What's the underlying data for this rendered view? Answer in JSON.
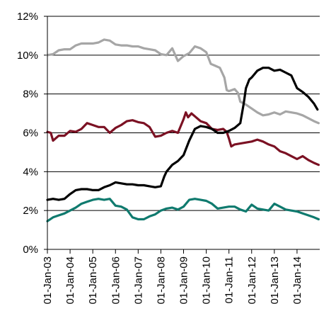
{
  "chart_data": {
    "type": "line",
    "title": "",
    "xlabel": "",
    "ylabel": "",
    "ylim": [
      0,
      12
    ],
    "y_tick_labels": [
      "0%",
      "2%",
      "4%",
      "6%",
      "8%",
      "10%",
      "12%"
    ],
    "y_ticks": [
      0,
      2,
      4,
      6,
      8,
      10,
      12
    ],
    "x_tick_labels": [
      "01-Jan-03",
      "01-Jan-04",
      "01-Jan-05",
      "01-Jan-06",
      "01-Jan-07",
      "01-Jan-08",
      "01-Jan-09",
      "01-Jan-10",
      "01-Jan-11",
      "01-Jan-12",
      "01-Jan-13",
      "01-Jan-14"
    ],
    "x_ticks": [
      2003,
      2004,
      2005,
      2006,
      2007,
      2008,
      2009,
      2010,
      2011,
      2012,
      2013,
      2014
    ],
    "xlim": [
      2003,
      2015
    ],
    "grid": true,
    "legend": "none",
    "series": [
      {
        "color": "#a6a6a6",
        "points": [
          [
            2003.0,
            10.0
          ],
          [
            2003.25,
            10.05
          ],
          [
            2003.5,
            10.25
          ],
          [
            2003.75,
            10.3
          ],
          [
            2004.0,
            10.3
          ],
          [
            2004.25,
            10.5
          ],
          [
            2004.5,
            10.6
          ],
          [
            2004.75,
            10.6
          ],
          [
            2005.0,
            10.6
          ],
          [
            2005.25,
            10.65
          ],
          [
            2005.5,
            10.8
          ],
          [
            2005.75,
            10.75
          ],
          [
            2006.0,
            10.55
          ],
          [
            2006.25,
            10.5
          ],
          [
            2006.5,
            10.5
          ],
          [
            2006.75,
            10.45
          ],
          [
            2007.0,
            10.45
          ],
          [
            2007.25,
            10.35
          ],
          [
            2007.5,
            10.3
          ],
          [
            2007.75,
            10.25
          ],
          [
            2008.0,
            10.05
          ],
          [
            2008.25,
            10.0
          ],
          [
            2008.5,
            10.35
          ],
          [
            2008.75,
            9.7
          ],
          [
            2009.0,
            9.95
          ],
          [
            2009.25,
            10.1
          ],
          [
            2009.5,
            10.45
          ],
          [
            2009.75,
            10.35
          ],
          [
            2010.0,
            10.15
          ],
          [
            2010.2,
            9.55
          ],
          [
            2010.4,
            9.45
          ],
          [
            2010.6,
            9.35
          ],
          [
            2010.8,
            8.85
          ],
          [
            2010.9,
            8.2
          ],
          [
            2011.0,
            8.15
          ],
          [
            2011.25,
            8.25
          ],
          [
            2011.4,
            8.05
          ],
          [
            2011.5,
            7.6
          ],
          [
            2011.75,
            7.45
          ],
          [
            2012.0,
            7.25
          ],
          [
            2012.25,
            7.05
          ],
          [
            2012.5,
            6.9
          ],
          [
            2012.75,
            6.95
          ],
          [
            2013.0,
            7.05
          ],
          [
            2013.25,
            6.95
          ],
          [
            2013.5,
            7.1
          ],
          [
            2013.75,
            7.05
          ],
          [
            2014.0,
            7.0
          ],
          [
            2014.25,
            6.9
          ],
          [
            2014.5,
            6.75
          ],
          [
            2014.75,
            6.6
          ],
          [
            2014.95,
            6.5
          ]
        ]
      },
      {
        "color": "#7b1123",
        "points": [
          [
            2003.0,
            6.05
          ],
          [
            2003.15,
            6.0
          ],
          [
            2003.25,
            5.6
          ],
          [
            2003.5,
            5.85
          ],
          [
            2003.75,
            5.85
          ],
          [
            2004.0,
            6.1
          ],
          [
            2004.25,
            6.05
          ],
          [
            2004.5,
            6.2
          ],
          [
            2004.75,
            6.5
          ],
          [
            2005.0,
            6.4
          ],
          [
            2005.25,
            6.3
          ],
          [
            2005.5,
            6.3
          ],
          [
            2005.75,
            6.0
          ],
          [
            2006.0,
            6.25
          ],
          [
            2006.25,
            6.4
          ],
          [
            2006.5,
            6.6
          ],
          [
            2006.75,
            6.65
          ],
          [
            2007.0,
            6.55
          ],
          [
            2007.25,
            6.5
          ],
          [
            2007.5,
            6.3
          ],
          [
            2007.75,
            5.8
          ],
          [
            2008.0,
            5.85
          ],
          [
            2008.25,
            6.0
          ],
          [
            2008.5,
            6.1
          ],
          [
            2008.75,
            6.0
          ],
          [
            2009.0,
            6.7
          ],
          [
            2009.1,
            7.05
          ],
          [
            2009.2,
            6.8
          ],
          [
            2009.35,
            7.0
          ],
          [
            2009.5,
            6.85
          ],
          [
            2009.75,
            6.6
          ],
          [
            2010.0,
            6.5
          ],
          [
            2010.25,
            6.2
          ],
          [
            2010.5,
            6.15
          ],
          [
            2010.75,
            6.2
          ],
          [
            2010.9,
            6.05
          ],
          [
            2011.0,
            5.7
          ],
          [
            2011.1,
            5.3
          ],
          [
            2011.25,
            5.4
          ],
          [
            2011.5,
            5.45
          ],
          [
            2011.75,
            5.5
          ],
          [
            2012.0,
            5.55
          ],
          [
            2012.25,
            5.65
          ],
          [
            2012.5,
            5.55
          ],
          [
            2012.75,
            5.4
          ],
          [
            2013.0,
            5.3
          ],
          [
            2013.25,
            5.05
          ],
          [
            2013.5,
            4.95
          ],
          [
            2013.75,
            4.8
          ],
          [
            2014.0,
            4.65
          ],
          [
            2014.25,
            4.8
          ],
          [
            2014.5,
            4.6
          ],
          [
            2014.75,
            4.45
          ],
          [
            2014.95,
            4.35
          ]
        ]
      },
      {
        "color": "#000000",
        "points": [
          [
            2003.0,
            2.55
          ],
          [
            2003.25,
            2.6
          ],
          [
            2003.5,
            2.55
          ],
          [
            2003.75,
            2.6
          ],
          [
            2004.0,
            2.85
          ],
          [
            2004.25,
            3.05
          ],
          [
            2004.5,
            3.1
          ],
          [
            2004.75,
            3.1
          ],
          [
            2005.0,
            3.05
          ],
          [
            2005.25,
            3.05
          ],
          [
            2005.5,
            3.2
          ],
          [
            2005.75,
            3.3
          ],
          [
            2006.0,
            3.45
          ],
          [
            2006.25,
            3.4
          ],
          [
            2006.5,
            3.35
          ],
          [
            2006.75,
            3.35
          ],
          [
            2007.0,
            3.3
          ],
          [
            2007.25,
            3.3
          ],
          [
            2007.5,
            3.25
          ],
          [
            2007.75,
            3.2
          ],
          [
            2008.0,
            3.25
          ],
          [
            2008.15,
            3.75
          ],
          [
            2008.25,
            4.0
          ],
          [
            2008.5,
            4.35
          ],
          [
            2008.75,
            4.55
          ],
          [
            2009.0,
            4.85
          ],
          [
            2009.25,
            5.6
          ],
          [
            2009.5,
            6.2
          ],
          [
            2009.75,
            6.35
          ],
          [
            2010.0,
            6.3
          ],
          [
            2010.25,
            6.2
          ],
          [
            2010.5,
            6.0
          ],
          [
            2010.75,
            6.0
          ],
          [
            2011.0,
            6.1
          ],
          [
            2011.25,
            6.25
          ],
          [
            2011.5,
            6.5
          ],
          [
            2011.65,
            7.5
          ],
          [
            2011.75,
            8.3
          ],
          [
            2011.9,
            8.75
          ],
          [
            2012.0,
            8.85
          ],
          [
            2012.25,
            9.2
          ],
          [
            2012.5,
            9.35
          ],
          [
            2012.75,
            9.35
          ],
          [
            2013.0,
            9.2
          ],
          [
            2013.25,
            9.25
          ],
          [
            2013.5,
            9.1
          ],
          [
            2013.75,
            8.95
          ],
          [
            2014.0,
            8.3
          ],
          [
            2014.25,
            8.1
          ],
          [
            2014.5,
            7.85
          ],
          [
            2014.75,
            7.5
          ],
          [
            2014.9,
            7.2
          ]
        ]
      },
      {
        "color": "#0f7a6e",
        "points": [
          [
            2003.0,
            1.45
          ],
          [
            2003.25,
            1.65
          ],
          [
            2003.5,
            1.75
          ],
          [
            2003.75,
            1.85
          ],
          [
            2004.0,
            2.0
          ],
          [
            2004.25,
            2.15
          ],
          [
            2004.5,
            2.35
          ],
          [
            2004.75,
            2.45
          ],
          [
            2005.0,
            2.55
          ],
          [
            2005.25,
            2.6
          ],
          [
            2005.5,
            2.55
          ],
          [
            2005.75,
            2.6
          ],
          [
            2006.0,
            2.25
          ],
          [
            2006.25,
            2.2
          ],
          [
            2006.5,
            2.05
          ],
          [
            2006.75,
            1.65
          ],
          [
            2007.0,
            1.55
          ],
          [
            2007.25,
            1.55
          ],
          [
            2007.5,
            1.7
          ],
          [
            2007.75,
            1.8
          ],
          [
            2008.0,
            2.0
          ],
          [
            2008.25,
            2.1
          ],
          [
            2008.5,
            2.15
          ],
          [
            2008.75,
            2.05
          ],
          [
            2009.0,
            2.2
          ],
          [
            2009.25,
            2.55
          ],
          [
            2009.5,
            2.6
          ],
          [
            2009.75,
            2.55
          ],
          [
            2010.0,
            2.5
          ],
          [
            2010.25,
            2.35
          ],
          [
            2010.5,
            2.1
          ],
          [
            2010.75,
            2.15
          ],
          [
            2011.0,
            2.2
          ],
          [
            2011.25,
            2.2
          ],
          [
            2011.5,
            2.05
          ],
          [
            2011.75,
            1.95
          ],
          [
            2012.0,
            2.3
          ],
          [
            2012.25,
            2.1
          ],
          [
            2012.5,
            2.05
          ],
          [
            2012.75,
            2.0
          ],
          [
            2013.0,
            2.35
          ],
          [
            2013.25,
            2.2
          ],
          [
            2013.5,
            2.05
          ],
          [
            2013.75,
            2.0
          ],
          [
            2014.0,
            1.95
          ],
          [
            2014.25,
            1.85
          ],
          [
            2014.5,
            1.75
          ],
          [
            2014.75,
            1.65
          ],
          [
            2014.95,
            1.55
          ]
        ]
      }
    ]
  }
}
